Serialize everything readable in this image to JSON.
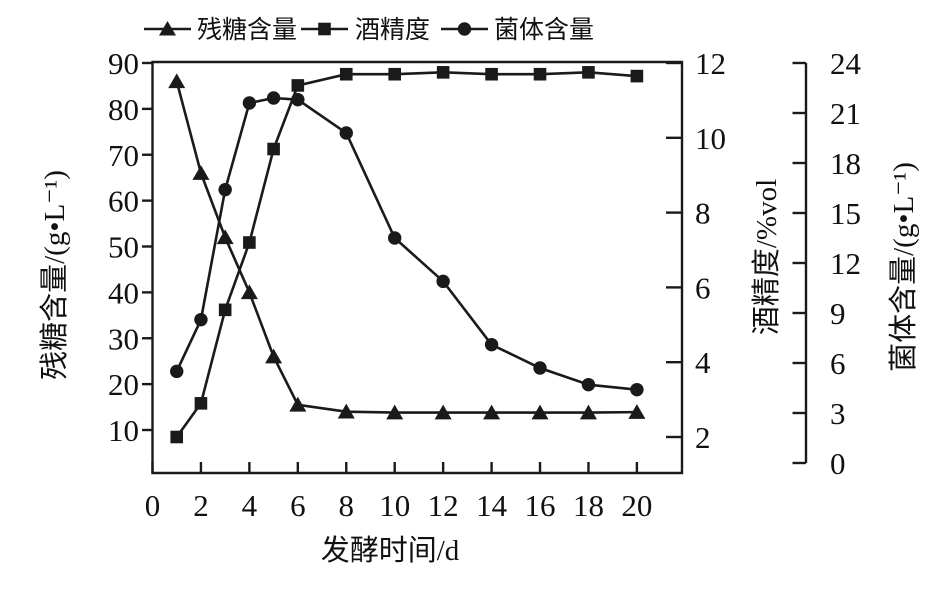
{
  "figure": {
    "background": "#ffffff",
    "line_color": "#1a1a1a",
    "text_color": "#111111"
  },
  "chart_data": {
    "type": "line",
    "title": "",
    "x": [
      1,
      2,
      3,
      4,
      5,
      6,
      8,
      10,
      12,
      14,
      16,
      18,
      20
    ],
    "x_ticks": [
      0,
      2,
      4,
      6,
      8,
      10,
      12,
      14,
      16,
      18,
      20
    ],
    "x_range": [
      0,
      20
    ],
    "grid": false,
    "legend_position": "top",
    "axes": {
      "bottom": {
        "title": "发酵时间/d"
      },
      "left": {
        "title": "残糖含量/(g•L⁻¹)",
        "range": [
          10,
          90
        ],
        "ticks": [
          10,
          20,
          30,
          40,
          50,
          60,
          70,
          80,
          90
        ]
      },
      "right": {
        "title": "酒精度/%vol",
        "range": [
          2,
          12
        ],
        "ticks": [
          2,
          4,
          6,
          8,
          10,
          12
        ]
      },
      "far_right": {
        "title": "菌体含量/(g•L⁻¹)",
        "range": [
          0,
          24
        ],
        "ticks": [
          0,
          3,
          6,
          9,
          12,
          15,
          18,
          21,
          24
        ]
      }
    },
    "series": [
      {
        "key": "sugar",
        "name": "残糖含量",
        "axis": "left",
        "marker": "triangle-up",
        "color": "#1a1a1a",
        "values": [
          86,
          66,
          52,
          40,
          26,
          15.5,
          14,
          13.8,
          13.8,
          13.8,
          13.8,
          13.8,
          13.9
        ]
      },
      {
        "key": "alcohol",
        "name": "酒精度",
        "axis": "right",
        "marker": "square",
        "color": "#1a1a1a",
        "values": [
          2.0,
          2.9,
          5.4,
          7.2,
          9.7,
          11.4,
          11.7,
          11.7,
          11.75,
          11.7,
          11.7,
          11.75,
          11.65
        ]
      },
      {
        "key": "biomass",
        "name": "菌体含量",
        "axis": "far_right",
        "marker": "circle",
        "color": "#1a1a1a",
        "values": [
          5.5,
          8.6,
          16.4,
          21.6,
          21.9,
          21.8,
          19.8,
          13.5,
          10.9,
          7.1,
          5.7,
          4.7,
          4.4
        ]
      }
    ]
  }
}
